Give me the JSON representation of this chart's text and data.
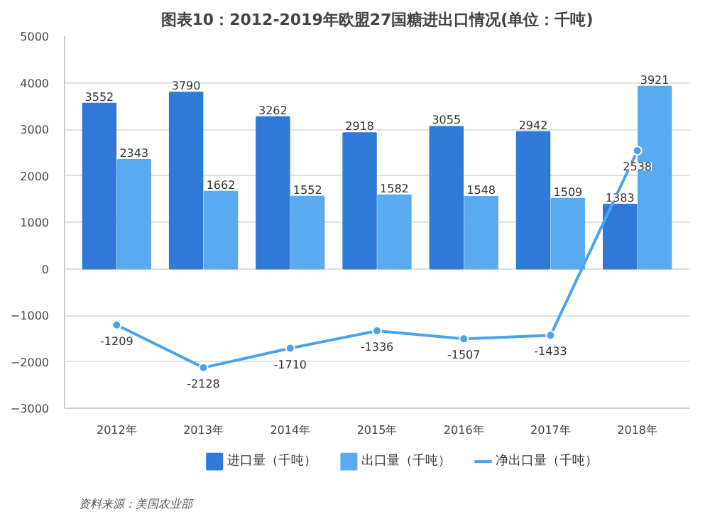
{
  "chart_data": {
    "type": "bar",
    "title": "图表10：2012-2019年欧盟27国糖进出口情况(单位：千吨)",
    "categories": [
      "2012年",
      "2013年",
      "2014年",
      "2015年",
      "2016年",
      "2017年",
      "2018年"
    ],
    "series": [
      {
        "name": "进口量（千吨）",
        "color": "#2f7ad8",
        "values": [
          3552,
          3790,
          3262,
          2918,
          3055,
          2942,
          1383
        ]
      },
      {
        "name": "出口量（千吨）",
        "color": "#5aaaf0",
        "values": [
          2343,
          1662,
          1552,
          1582,
          1548,
          1509,
          3921
        ]
      },
      {
        "name": "净出口量（千吨）",
        "type": "line",
        "color": "#4aa3ee",
        "values": [
          -1209,
          -2128,
          -1710,
          -1336,
          -1507,
          -1433,
          2538
        ]
      }
    ],
    "ylim": [
      -3000,
      5000
    ],
    "yticks": [
      -3000,
      -2000,
      -1000,
      0,
      1000,
      2000,
      3000,
      4000,
      5000
    ],
    "grid": "y",
    "legend": "bottom",
    "data_labels": true,
    "marker": "circle",
    "annotations": [
      "资料来源：美国农业部"
    ]
  }
}
